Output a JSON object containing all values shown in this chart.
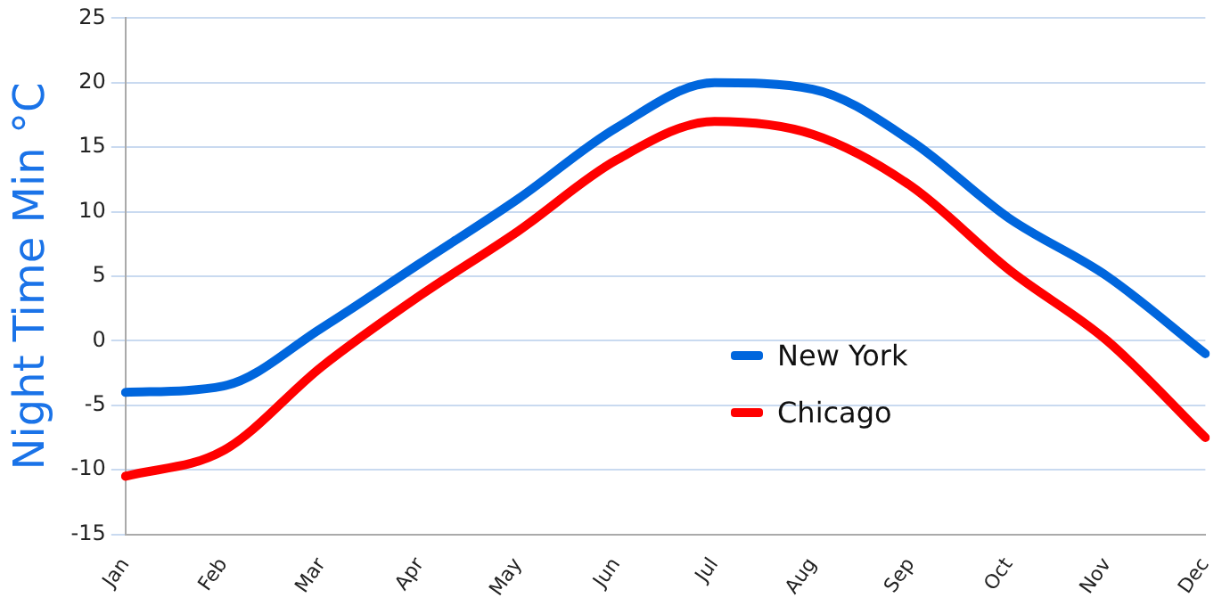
{
  "chart_data": {
    "type": "line",
    "ylabel": "Night Time Min °C",
    "categories": [
      "Jan",
      "Feb",
      "Mar",
      "Apr",
      "May",
      "Jun",
      "Jul",
      "Aug",
      "Sep",
      "Oct",
      "Nov",
      "Dec"
    ],
    "series": [
      {
        "name": "New York",
        "color": "#0066dd",
        "values": [
          -4,
          -3.5,
          1,
          6,
          11,
          16.5,
          20,
          19.5,
          15.5,
          9.5,
          5,
          -1
        ]
      },
      {
        "name": "Chicago",
        "color": "#ff0000",
        "values": [
          -10.5,
          -8.5,
          -2,
          3.5,
          8.5,
          14,
          17,
          16,
          12,
          5.5,
          0,
          -7.5
        ]
      }
    ],
    "ylim": [
      -15,
      25
    ],
    "yticks": [
      -15,
      -10,
      -5,
      0,
      5,
      10,
      15,
      20,
      25
    ],
    "grid": "y",
    "legend": "right",
    "marker": "none",
    "line_style": "solid"
  }
}
